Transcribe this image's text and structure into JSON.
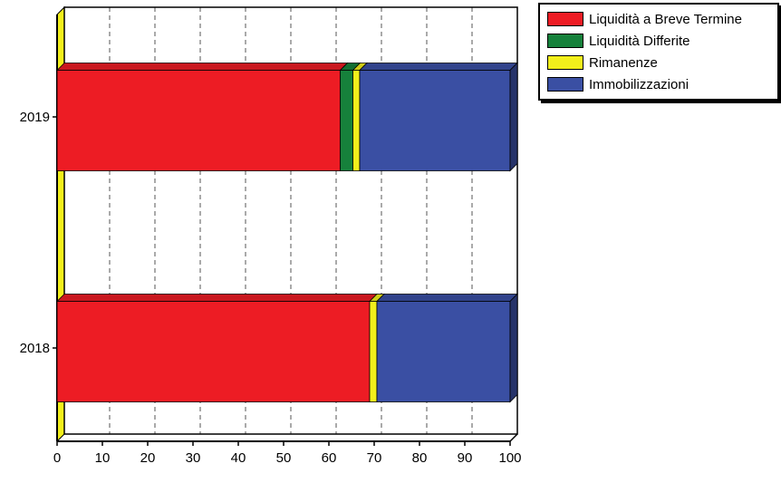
{
  "chart_data": {
    "type": "bar",
    "orientation": "horizontal",
    "stacked": true,
    "percent": true,
    "categories": [
      "2019",
      "2018"
    ],
    "series": [
      {
        "name": "Liquidità a Breve Termine",
        "color": "#ed1c24",
        "values": [
          62.5,
          69.0
        ]
      },
      {
        "name": "Liquidità Differite",
        "color": "#16813b",
        "values": [
          2.8,
          0.0
        ]
      },
      {
        "name": "Rimanenze",
        "color": "#f2ef1b",
        "values": [
          1.5,
          1.6
        ]
      },
      {
        "name": "Immobilizzazioni",
        "color": "#3a4fa3",
        "values": [
          33.2,
          29.4
        ]
      }
    ],
    "xlim": [
      0,
      100
    ],
    "xticks": [
      "0",
      "10",
      "20",
      "30",
      "40",
      "50",
      "60",
      "70",
      "80",
      "90",
      "100"
    ],
    "grid": true,
    "three_d": true,
    "legend_position": "top-right",
    "title": "",
    "xlabel": "",
    "ylabel": ""
  }
}
